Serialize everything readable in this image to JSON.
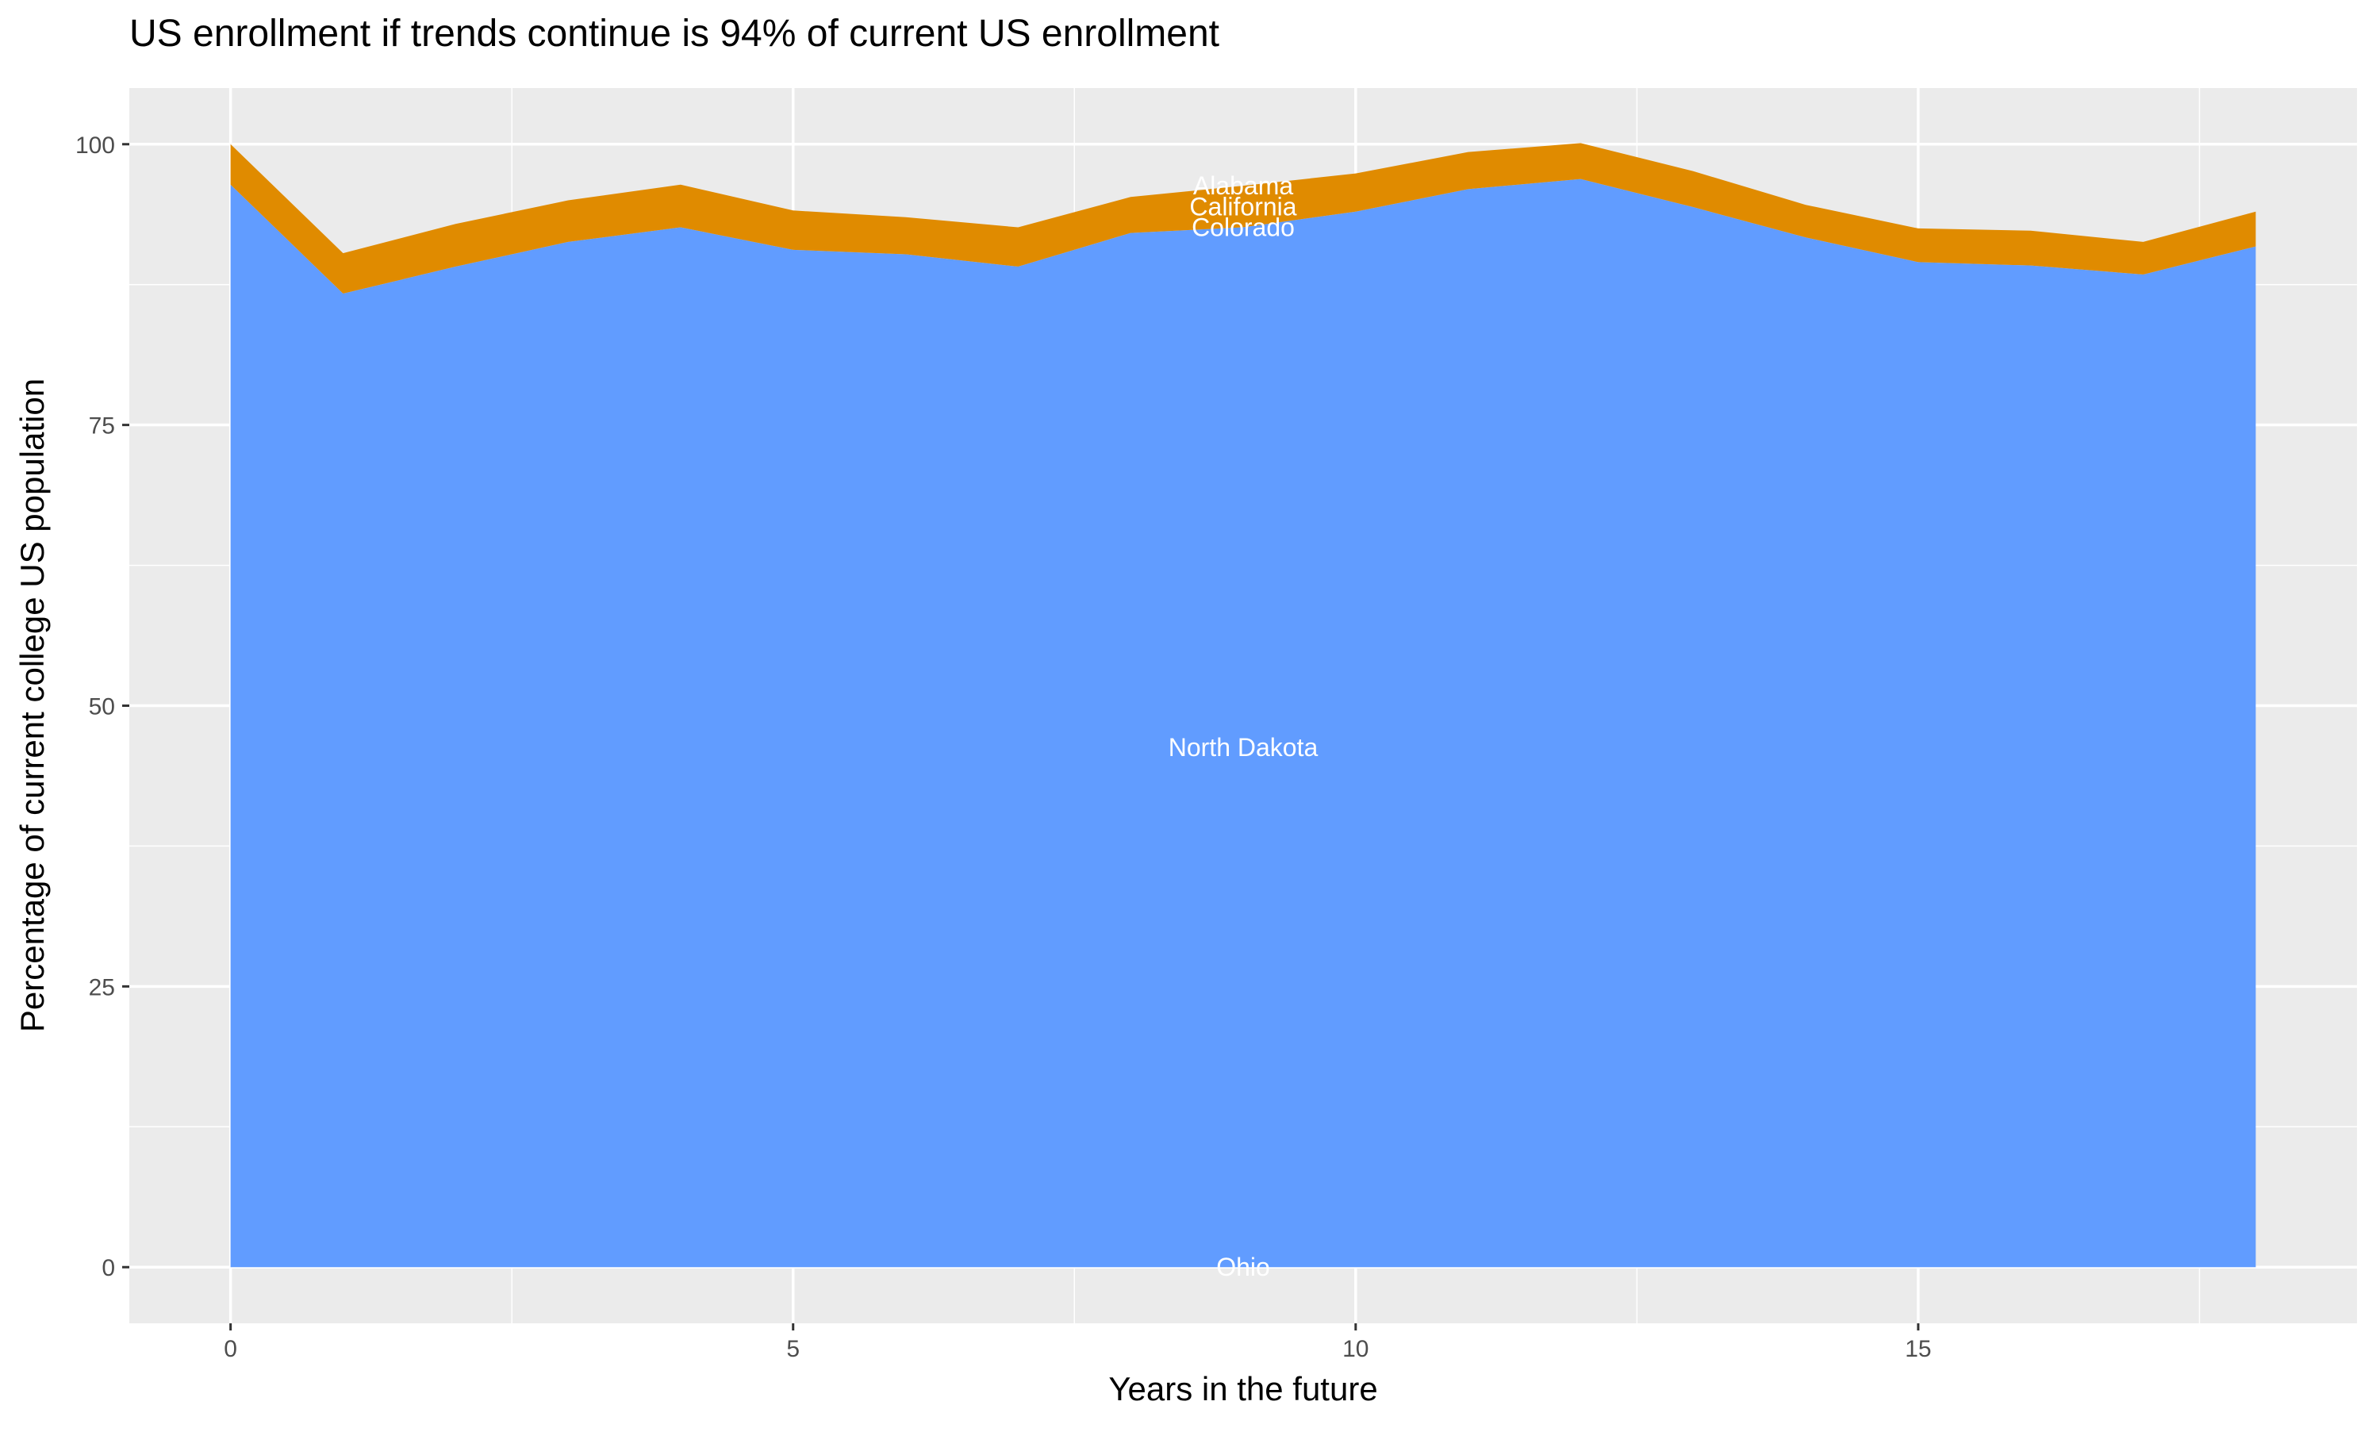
{
  "chart_data": {
    "type": "area",
    "stacked": true,
    "title": "US enrollment if trends continue is 94% of current US enrollment",
    "xlabel": "Years in the future",
    "ylabel": "Percentage of current college US population",
    "x": [
      0,
      1,
      2,
      3,
      4,
      5,
      6,
      7,
      8,
      9,
      10,
      11,
      12,
      13,
      14,
      15,
      16,
      17,
      18
    ],
    "xlim": [
      -0.9,
      18.9
    ],
    "ylim": [
      -5,
      105
    ],
    "xticks": [
      0,
      5,
      10,
      15
    ],
    "yticks": [
      0,
      25,
      50,
      75,
      100
    ],
    "grid": true,
    "legend": "none",
    "label_x": 9,
    "series": [
      {
        "name": "Alabama",
        "color": "#F8766D",
        "values": [
          0,
          0,
          0,
          0,
          0,
          0,
          0,
          0,
          0,
          0,
          0,
          0,
          0,
          0,
          0,
          0,
          0,
          0,
          0
        ]
      },
      {
        "name": "California",
        "color": "#E08B00",
        "values": [
          3.6,
          3.6,
          3.8,
          3.7,
          3.8,
          3.5,
          3.3,
          3.5,
          3.2,
          3.7,
          3.4,
          3.3,
          3.2,
          3.2,
          2.9,
          3.0,
          3.1,
          2.9,
          3.1
        ]
      },
      {
        "name": "Colorado",
        "color": "#00BF7D",
        "values": [
          0,
          0,
          0,
          0,
          0,
          0,
          0,
          0,
          0,
          0,
          0,
          0,
          0,
          0,
          0,
          0,
          0,
          0,
          0
        ]
      },
      {
        "name": "North Dakota",
        "color": "#619CFF",
        "values": [
          96.4,
          86.7,
          89.1,
          91.3,
          92.6,
          90.6,
          90.2,
          89.1,
          92.1,
          92.6,
          94.0,
          96.0,
          96.9,
          94.4,
          91.7,
          89.5,
          89.2,
          88.4,
          90.9
        ]
      },
      {
        "name": "Ohio",
        "color": "#E76BF3",
        "values": [
          0,
          0,
          0,
          0,
          0,
          0,
          0,
          0,
          0,
          0,
          0,
          0,
          0,
          0,
          0,
          0,
          0,
          0,
          0
        ]
      }
    ],
    "colors": {
      "panel": "#EBEBEB",
      "grid": "#FFFFFF",
      "label": "#FFFFFF"
    }
  }
}
